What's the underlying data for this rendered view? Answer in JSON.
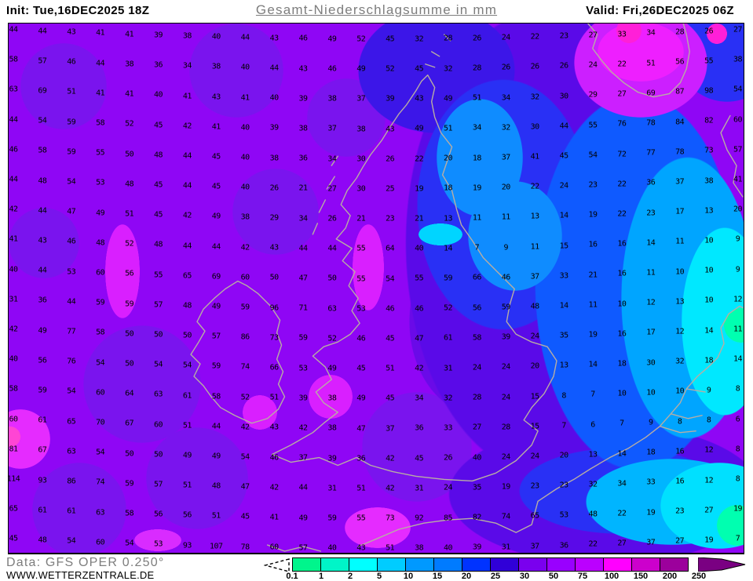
{
  "header": {
    "init": "Init: Tue,16DEC2025 18Z",
    "title": "Gesamt-Niederschlagsumme in mm",
    "valid": "Valid: Fri,26DEC2025 06Z"
  },
  "footer": {
    "data_source": "Data: GFS OPER 0.250°",
    "website": "WWW.WETTERZENTRALE.DE"
  },
  "legend": {
    "ticks": [
      "0.1",
      "1",
      "2",
      "5",
      "10",
      "15",
      "20",
      "25",
      "30",
      "50",
      "75",
      "100",
      "150",
      "200",
      "250"
    ],
    "colors": [
      "#00f58c",
      "#00f5c8",
      "#00ffff",
      "#00ccff",
      "#0099ff",
      "#007bff",
      "#0033ff",
      "#3000d8",
      "#7a00ee",
      "#9900ff",
      "#bb00ff",
      "#ff00ff",
      "#cc00cc",
      "#9c009c"
    ],
    "arrow_color": "#7a0082"
  },
  "map": {
    "base_color": "#8f06f5",
    "coastline_color": "#b8ada4",
    "number_color": "#000000",
    "grid_rows": [
      [
        "44",
        "44",
        "43",
        "41",
        "41",
        "39",
        "38",
        "40",
        "44",
        "43",
        "46",
        "49",
        "52",
        "45",
        "32",
        "28",
        "26",
        "24",
        "22",
        "23",
        "27",
        "33",
        "34",
        "28",
        "26",
        "27"
      ],
      [
        "58",
        "57",
        "46",
        "44",
        "38",
        "36",
        "34",
        "38",
        "40",
        "44",
        "43",
        "46",
        "49",
        "52",
        "45",
        "32",
        "28",
        "26",
        "26",
        "26",
        "24",
        "22",
        "51",
        "56",
        "55",
        "38"
      ],
      [
        "63",
        "69",
        "51",
        "41",
        "41",
        "40",
        "41",
        "43",
        "41",
        "40",
        "39",
        "38",
        "37",
        "39",
        "43",
        "49",
        "51",
        "34",
        "32",
        "30",
        "29",
        "27",
        "69",
        "87",
        "98",
        "54"
      ],
      [
        "44",
        "54",
        "59",
        "58",
        "52",
        "45",
        "42",
        "41",
        "40",
        "39",
        "38",
        "37",
        "38",
        "43",
        "49",
        "51",
        "34",
        "32",
        "30",
        "44",
        "55",
        "76",
        "78",
        "84",
        "82",
        "60"
      ],
      [
        "46",
        "58",
        "59",
        "55",
        "50",
        "48",
        "44",
        "45",
        "40",
        "38",
        "36",
        "34",
        "30",
        "26",
        "22",
        "20",
        "18",
        "37",
        "41",
        "45",
        "54",
        "72",
        "77",
        "78",
        "73",
        "57"
      ],
      [
        "44",
        "48",
        "54",
        "53",
        "48",
        "45",
        "44",
        "45",
        "40",
        "26",
        "21",
        "27",
        "30",
        "25",
        "19",
        "18",
        "19",
        "20",
        "22",
        "24",
        "23",
        "22",
        "36",
        "37",
        "38",
        "41"
      ],
      [
        "42",
        "44",
        "47",
        "49",
        "51",
        "45",
        "42",
        "49",
        "38",
        "29",
        "34",
        "26",
        "21",
        "23",
        "21",
        "13",
        "11",
        "11",
        "13",
        "14",
        "19",
        "22",
        "23",
        "17",
        "13",
        "20"
      ],
      [
        "41",
        "43",
        "46",
        "48",
        "52",
        "48",
        "44",
        "44",
        "42",
        "43",
        "44",
        "44",
        "55",
        "64",
        "40",
        "14",
        "7",
        "9",
        "11",
        "15",
        "16",
        "16",
        "14",
        "11",
        "10",
        "9"
      ],
      [
        "40",
        "44",
        "53",
        "60",
        "56",
        "55",
        "65",
        "69",
        "60",
        "50",
        "47",
        "50",
        "55",
        "54",
        "55",
        "59",
        "66",
        "46",
        "37",
        "33",
        "21",
        "16",
        "11",
        "10",
        "10",
        "9"
      ],
      [
        "31",
        "36",
        "44",
        "59",
        "59",
        "57",
        "48",
        "49",
        "59",
        "96",
        "71",
        "63",
        "53",
        "46",
        "46",
        "52",
        "56",
        "59",
        "48",
        "14",
        "11",
        "10",
        "12",
        "13",
        "10",
        "12"
      ],
      [
        "42",
        "49",
        "77",
        "58",
        "50",
        "50",
        "50",
        "57",
        "86",
        "73",
        "59",
        "52",
        "46",
        "45",
        "47",
        "61",
        "58",
        "39",
        "24",
        "35",
        "19",
        "16",
        "17",
        "12",
        "14",
        "11"
      ],
      [
        "40",
        "56",
        "76",
        "54",
        "50",
        "54",
        "54",
        "59",
        "74",
        "66",
        "53",
        "49",
        "45",
        "51",
        "42",
        "31",
        "24",
        "24",
        "20",
        "13",
        "14",
        "18",
        "30",
        "32",
        "18",
        "14"
      ],
      [
        "58",
        "59",
        "54",
        "60",
        "64",
        "63",
        "61",
        "58",
        "52",
        "51",
        "39",
        "38",
        "49",
        "45",
        "34",
        "32",
        "28",
        "24",
        "15",
        "8",
        "7",
        "10",
        "10",
        "10",
        "9",
        "8"
      ],
      [
        "60",
        "61",
        "65",
        "70",
        "67",
        "60",
        "51",
        "44",
        "42",
        "43",
        "42",
        "38",
        "47",
        "37",
        "36",
        "33",
        "27",
        "28",
        "15",
        "7",
        "6",
        "7",
        "9",
        "8",
        "8",
        "6"
      ],
      [
        "81",
        "67",
        "63",
        "54",
        "50",
        "50",
        "49",
        "49",
        "54",
        "46",
        "37",
        "39",
        "36",
        "42",
        "45",
        "26",
        "40",
        "24",
        "24",
        "20",
        "13",
        "14",
        "18",
        "16",
        "12",
        "8"
      ],
      [
        "114",
        "93",
        "86",
        "74",
        "59",
        "57",
        "51",
        "48",
        "47",
        "42",
        "44",
        "31",
        "51",
        "42",
        "31",
        "24",
        "35",
        "19",
        "23",
        "23",
        "32",
        "34",
        "33",
        "16",
        "12",
        "8"
      ],
      [
        "65",
        "61",
        "61",
        "63",
        "58",
        "56",
        "56",
        "51",
        "45",
        "41",
        "49",
        "59",
        "55",
        "73",
        "92",
        "85",
        "82",
        "74",
        "65",
        "53",
        "48",
        "22",
        "19",
        "23",
        "27",
        "19"
      ],
      [
        "45",
        "48",
        "54",
        "60",
        "54",
        "53",
        "93",
        "107",
        "78",
        "60",
        "57",
        "40",
        "43",
        "51",
        "38",
        "40",
        "39",
        "31",
        "37",
        "36",
        "22",
        "27",
        "37",
        "27",
        "19",
        "7"
      ]
    ]
  }
}
